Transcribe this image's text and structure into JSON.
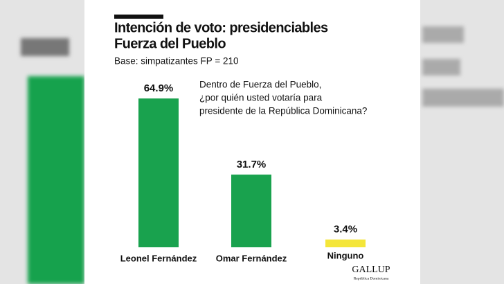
{
  "chart_data": {
    "type": "bar",
    "title_lines": [
      "Intención de voto: presidenciables",
      "Fuerza del Pueblo"
    ],
    "subtitle": "Base: simpatizantes FP = 210",
    "annotation_lines": [
      "Dentro de Fuerza del Pueblo,",
      "¿por quién usted votaría para",
      "presidente de la República Dominicana?"
    ],
    "categories": [
      "Leonel Fernández",
      "Omar Fernández",
      "Ninguno"
    ],
    "values": [
      64.9,
      31.7,
      3.4
    ],
    "value_labels": [
      "64.9%",
      "31.7%",
      "3.4%"
    ],
    "colors": [
      "#19a24e",
      "#19a24e",
      "#f4e63a"
    ],
    "source": {
      "logo": "GALLUP",
      "sub": "República Dominicana"
    }
  }
}
